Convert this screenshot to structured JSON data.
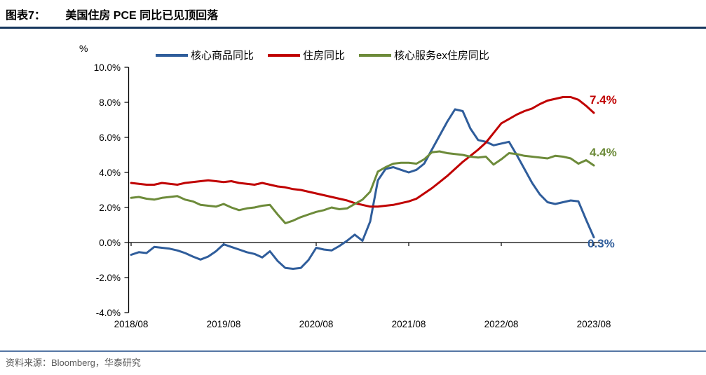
{
  "title": {
    "tag": "图表7：",
    "text": "美国住房 PCE 同比已见顶回落"
  },
  "unit_label": "%",
  "legend": [
    {
      "label": "核心商品同比",
      "color": "#2f5d9b"
    },
    {
      "label": "住房同比",
      "color": "#c00000"
    },
    {
      "label": "核心服务ex住房同比",
      "color": "#6d8b3a"
    }
  ],
  "footer": {
    "source": "资料来源：Bloomberg，华泰研究"
  },
  "chart_data": {
    "type": "line",
    "title": "美国住房 PCE 同比已见顶回落",
    "ylabel": "%",
    "ylim": [
      -4.0,
      10.0
    ],
    "y_tick_values": [
      10,
      8,
      6,
      4,
      2,
      0,
      -2,
      -4
    ],
    "y_tick_labels": [
      "10.0%",
      "8.0%",
      "6.0%",
      "4.0%",
      "2.0%",
      "0.0%",
      "-2.0%",
      "-4.0%"
    ],
    "x_tick_labels": [
      "2018/08",
      "2019/08",
      "2020/08",
      "2021/08",
      "2022/08",
      "2023/08"
    ],
    "x_tick_indices": [
      0,
      12,
      24,
      36,
      48,
      60
    ],
    "x_start": "2018/08",
    "x_end": "2023/08",
    "x_frequency": "monthly",
    "grid": false,
    "legend_position": "top",
    "series": [
      {
        "name": "核心商品同比",
        "color": "#2f5d9b",
        "end_label": "0.3%",
        "values": [
          -0.7,
          -0.55,
          -0.6,
          -0.25,
          -0.3,
          -0.35,
          -0.45,
          -0.6,
          -0.8,
          -0.97,
          -0.8,
          -0.5,
          -0.1,
          -0.25,
          -0.4,
          -0.55,
          -0.65,
          -0.85,
          -0.5,
          -1.05,
          -1.45,
          -1.5,
          -1.45,
          -1.0,
          -0.3,
          -0.4,
          -0.45,
          -0.2,
          0.1,
          0.45,
          0.1,
          1.2,
          3.55,
          4.2,
          4.3,
          4.15,
          4.0,
          4.15,
          4.5,
          5.3,
          6.1,
          6.9,
          7.6,
          7.5,
          6.5,
          5.85,
          5.75,
          5.55,
          5.65,
          5.75,
          5.0,
          4.2,
          3.4,
          2.75,
          2.3,
          2.2,
          2.3,
          2.4,
          2.35,
          1.3,
          0.3
        ]
      },
      {
        "name": "住房同比",
        "color": "#c00000",
        "end_label": "7.4%",
        "values": [
          3.4,
          3.35,
          3.3,
          3.3,
          3.4,
          3.35,
          3.3,
          3.4,
          3.45,
          3.5,
          3.55,
          3.5,
          3.45,
          3.5,
          3.4,
          3.35,
          3.3,
          3.4,
          3.3,
          3.2,
          3.15,
          3.05,
          3.0,
          2.9,
          2.8,
          2.7,
          2.6,
          2.5,
          2.4,
          2.25,
          2.15,
          2.05,
          2.05,
          2.1,
          2.15,
          2.25,
          2.35,
          2.5,
          2.8,
          3.1,
          3.45,
          3.8,
          4.2,
          4.6,
          4.95,
          5.3,
          5.7,
          6.25,
          6.8,
          7.05,
          7.3,
          7.5,
          7.65,
          7.9,
          8.1,
          8.2,
          8.3,
          8.3,
          8.15,
          7.8,
          7.4
        ]
      },
      {
        "name": "核心服务ex住房同比",
        "color": "#6d8b3a",
        "end_label": "4.4%",
        "values": [
          2.55,
          2.6,
          2.5,
          2.45,
          2.55,
          2.6,
          2.65,
          2.45,
          2.35,
          2.15,
          2.1,
          2.05,
          2.2,
          2.0,
          1.85,
          1.95,
          2.0,
          2.1,
          2.15,
          1.6,
          1.1,
          1.25,
          1.45,
          1.6,
          1.75,
          1.85,
          2.0,
          1.9,
          1.95,
          2.2,
          2.45,
          2.9,
          4.05,
          4.3,
          4.5,
          4.55,
          4.55,
          4.5,
          4.75,
          5.15,
          5.2,
          5.1,
          5.05,
          5.0,
          4.9,
          4.85,
          4.9,
          4.45,
          4.75,
          5.1,
          5.05,
          4.95,
          4.9,
          4.85,
          4.8,
          4.95,
          4.9,
          4.8,
          4.5,
          4.7,
          4.4
        ]
      }
    ],
    "annotations": [
      {
        "text": "7.4%",
        "color": "#c00000",
        "series": "住房同比"
      },
      {
        "text": "4.4%",
        "color": "#6d8b3a",
        "series": "核心服务ex住房同比"
      },
      {
        "text": "0.3%",
        "color": "#2f5d9b",
        "series": "核心商品同比"
      }
    ]
  }
}
